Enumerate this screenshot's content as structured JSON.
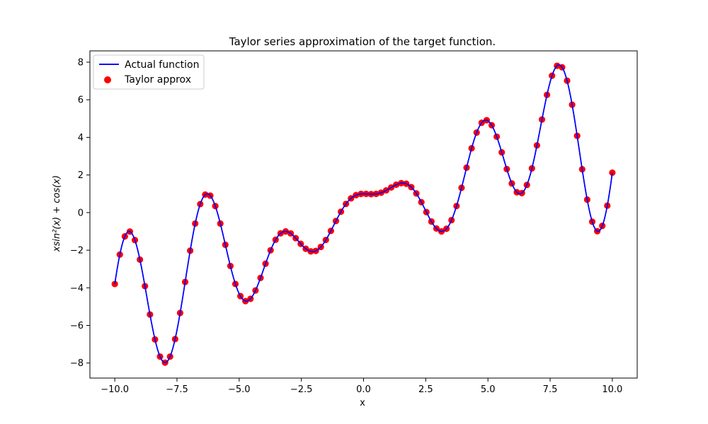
{
  "chart_data": {
    "type": "line",
    "title": "Taylor series approximation of the target function.",
    "xlabel": "x",
    "ylabel": "xsin²(x) + cos(x)",
    "xlim": [
      -10.0,
      10.0
    ],
    "ylim": [
      -8.0,
      8.0
    ],
    "xticks": [
      -10.0,
      -7.5,
      -5.0,
      -2.5,
      0.0,
      2.5,
      5.0,
      7.5,
      10.0
    ],
    "xtick_labels": [
      "−10.0",
      "−7.5",
      "−5.0",
      "−2.5",
      "0.0",
      "2.5",
      "5.0",
      "7.5",
      "10.0"
    ],
    "yticks": [
      -8,
      -6,
      -4,
      -2,
      0,
      2,
      4,
      6,
      8
    ],
    "ytick_labels": [
      "−8",
      "−6",
      "−4",
      "−2",
      "0",
      "2",
      "4",
      "6",
      "8"
    ],
    "function": "x*sin(x)^2 + cos(x)",
    "series": [
      {
        "name": "Actual function",
        "kind": "line",
        "color": "#0000ff",
        "samples": 600
      },
      {
        "name": "Taylor approx",
        "kind": "scatter",
        "color": "#ff0000",
        "samples": 100
      }
    ],
    "legend": {
      "position": "top-left",
      "entries": [
        "Actual function",
        "Taylor approx"
      ]
    }
  }
}
